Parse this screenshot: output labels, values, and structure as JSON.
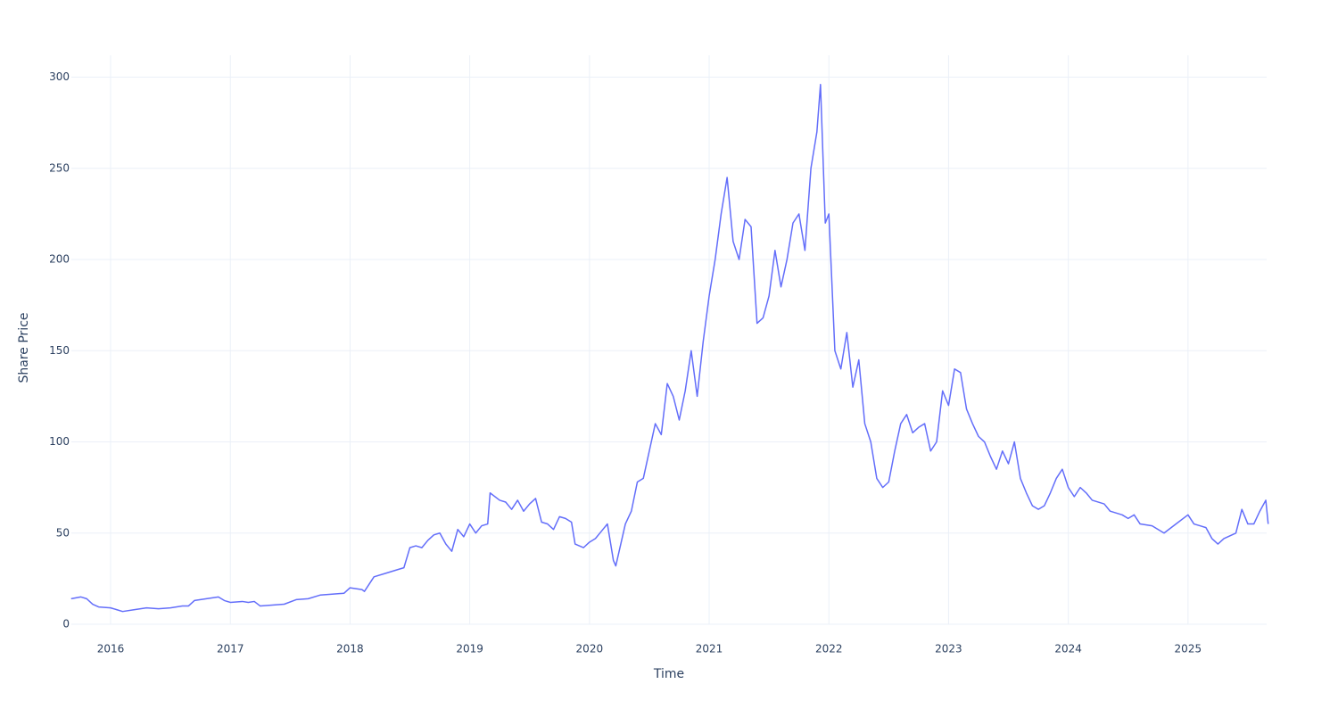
{
  "chart_data": {
    "type": "line",
    "x_label": "Time",
    "y_label": "Share Price",
    "color": "#636efa",
    "grid": true,
    "xlim": [
      2015.672,
      2025.657
    ],
    "ylim": [
      0,
      312
    ],
    "xticks": [
      2016,
      2017,
      2018,
      2019,
      2020,
      2021,
      2022,
      2023,
      2024,
      2025
    ],
    "yticks": [
      0,
      50,
      100,
      150,
      200,
      250,
      300
    ],
    "x": [
      2015.67,
      2015.75,
      2015.8,
      2015.85,
      2015.9,
      2016.0,
      2016.05,
      2016.1,
      2016.2,
      2016.3,
      2016.4,
      2016.5,
      2016.6,
      2016.65,
      2016.7,
      2016.8,
      2016.9,
      2016.95,
      2017.0,
      2017.1,
      2017.15,
      2017.2,
      2017.25,
      2017.35,
      2017.45,
      2017.55,
      2017.65,
      2017.75,
      2017.85,
      2017.95,
      2018.0,
      2018.1,
      2018.12,
      2018.2,
      2018.3,
      2018.4,
      2018.45,
      2018.5,
      2018.55,
      2018.6,
      2018.65,
      2018.7,
      2018.75,
      2018.8,
      2018.85,
      2018.9,
      2018.95,
      2019.0,
      2019.05,
      2019.1,
      2019.15,
      2019.17,
      2019.25,
      2019.3,
      2019.35,
      2019.4,
      2019.45,
      2019.5,
      2019.55,
      2019.6,
      2019.65,
      2019.7,
      2019.75,
      2019.8,
      2019.85,
      2019.88,
      2019.95,
      2020.0,
      2020.05,
      2020.1,
      2020.15,
      2020.2,
      2020.22,
      2020.3,
      2020.35,
      2020.4,
      2020.45,
      2020.5,
      2020.55,
      2020.6,
      2020.65,
      2020.7,
      2020.75,
      2020.8,
      2020.85,
      2020.9,
      2020.95,
      2021.0,
      2021.05,
      2021.1,
      2021.15,
      2021.2,
      2021.25,
      2021.3,
      2021.35,
      2021.4,
      2021.45,
      2021.5,
      2021.55,
      2021.6,
      2021.65,
      2021.7,
      2021.75,
      2021.8,
      2021.85,
      2021.9,
      2021.93,
      2021.97,
      2022.0,
      2022.05,
      2022.1,
      2022.15,
      2022.2,
      2022.25,
      2022.3,
      2022.35,
      2022.4,
      2022.45,
      2022.5,
      2022.55,
      2022.6,
      2022.65,
      2022.7,
      2022.75,
      2022.8,
      2022.85,
      2022.9,
      2022.95,
      2023.0,
      2023.05,
      2023.1,
      2023.15,
      2023.2,
      2023.25,
      2023.3,
      2023.35,
      2023.4,
      2023.45,
      2023.5,
      2023.55,
      2023.6,
      2023.65,
      2023.7,
      2023.75,
      2023.8,
      2023.85,
      2023.9,
      2023.95,
      2024.0,
      2024.05,
      2024.1,
      2024.15,
      2024.2,
      2024.3,
      2024.35,
      2024.45,
      2024.5,
      2024.55,
      2024.6,
      2024.7,
      2024.8,
      2024.9,
      2025.0,
      2025.05,
      2025.1,
      2025.15,
      2025.2,
      2025.25,
      2025.3,
      2025.4,
      2025.45,
      2025.5,
      2025.55,
      2025.6,
      2025.65,
      2025.67
    ],
    "values": [
      14,
      15,
      14,
      11,
      9.5,
      9,
      8,
      7,
      8,
      9,
      8.5,
      9,
      10,
      10,
      13,
      14,
      15,
      13,
      12,
      12.5,
      12,
      12.5,
      10,
      10.5,
      11,
      13.5,
      14,
      16,
      16.5,
      17,
      20,
      19,
      18,
      26,
      28,
      30,
      31,
      42,
      43,
      42,
      46,
      49,
      50,
      44,
      40,
      52,
      48,
      55,
      50,
      54,
      55,
      72,
      68,
      67,
      63,
      68,
      62,
      66,
      69,
      56,
      55,
      52,
      59,
      58,
      56,
      44,
      42,
      45,
      47,
      51,
      55,
      35,
      32,
      55,
      62,
      78,
      80,
      95,
      110,
      104,
      132,
      125,
      112,
      128,
      150,
      125,
      155,
      180,
      200,
      225,
      245,
      210,
      200,
      222,
      218,
      165,
      168,
      180,
      205,
      185,
      200,
      220,
      225,
      205,
      250,
      270,
      296,
      220,
      225,
      150,
      140,
      160,
      130,
      145,
      110,
      100,
      80,
      75,
      78,
      95,
      110,
      115,
      105,
      108,
      110,
      95,
      100,
      128,
      120,
      140,
      138,
      118,
      110,
      103,
      100,
      92,
      85,
      95,
      88,
      100,
      80,
      72,
      65,
      63,
      65,
      72,
      80,
      85,
      75,
      70,
      75,
      72,
      68,
      66,
      62,
      60,
      58,
      60,
      55,
      54,
      50,
      55,
      60,
      55,
      54,
      53,
      47,
      44,
      47,
      50,
      63,
      55,
      55,
      62,
      68,
      55
    ]
  }
}
